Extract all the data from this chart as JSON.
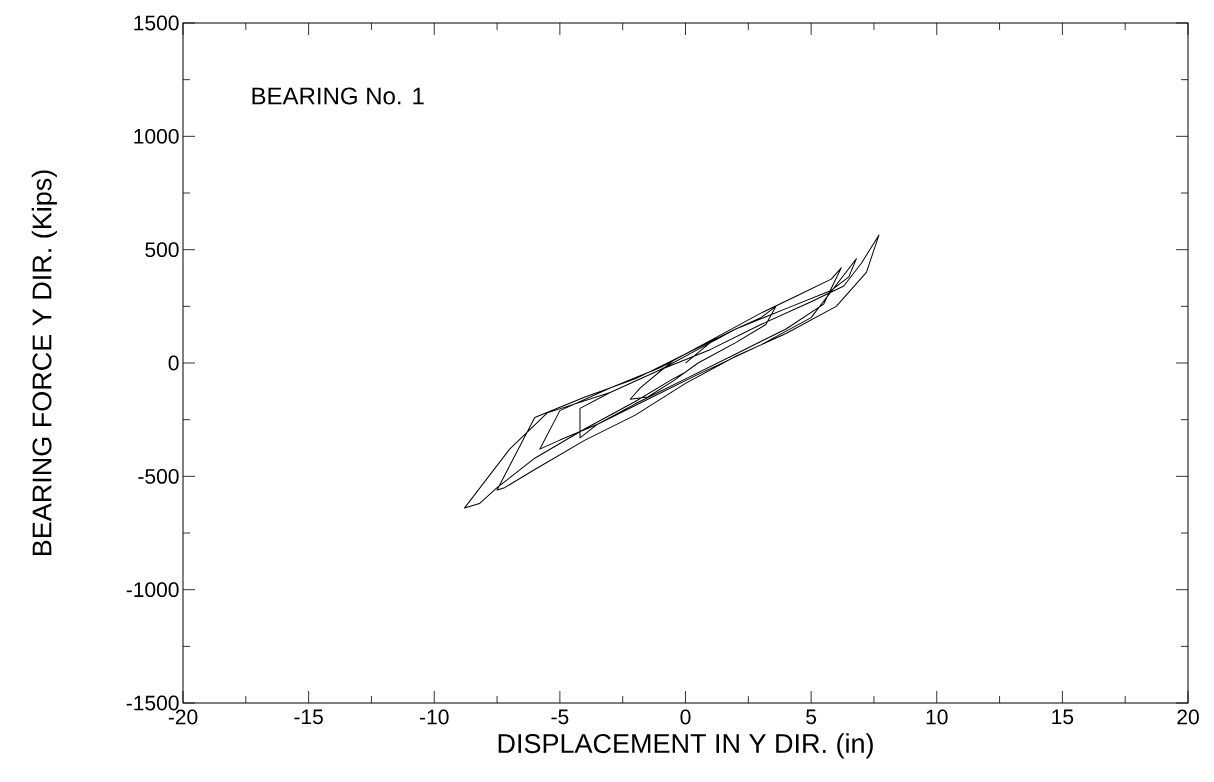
{
  "chart_data": {
    "type": "line",
    "xlabel": "DISPLACEMENT  IN  Y DIR. (in)",
    "ylabel": "BEARING FORCE Y DIR. (Kips)",
    "annotations": [
      "BEARING No. 1"
    ],
    "color": "#000000",
    "marker": "none",
    "line_style": "solid",
    "grid": false,
    "xlim": [
      -20,
      20
    ],
    "ylim": [
      -1500,
      1500
    ],
    "xticks": [
      -20,
      -15,
      -10,
      -5,
      0,
      5,
      10,
      15,
      20
    ],
    "yticks": [
      -1500,
      -1000,
      -500,
      0,
      500,
      1000,
      1500
    ],
    "x": [
      0,
      1.2,
      0.5,
      -0.5,
      -1.8,
      -2.2,
      -1.5,
      -0.5,
      0.5,
      2,
      3.2,
      3.6,
      3,
      2,
      0.5,
      -1,
      -3,
      -4.2,
      -4.2,
      -3.5,
      -2,
      0,
      2,
      4,
      5.5,
      6.2,
      5.8,
      4.5,
      3,
      1,
      -1,
      -3,
      -5,
      -5.8,
      -5,
      -3.5,
      -1.5,
      0.5,
      3,
      5,
      6.8,
      6.5,
      5.8,
      4,
      2,
      0,
      -2,
      -4,
      -6,
      -7.5,
      -7.2,
      -6,
      -4,
      -2,
      0,
      2,
      4,
      6,
      7.2,
      7.7,
      7,
      6.3,
      5,
      3,
      1,
      -1,
      -3,
      -5.5,
      -7,
      -8.8,
      -8.2,
      -7.5,
      -6,
      -4,
      -2,
      -0.5,
      0
    ],
    "values": [
      0,
      110,
      70,
      10,
      -110,
      -160,
      -150,
      -80,
      0,
      90,
      170,
      250,
      200,
      150,
      60,
      -30,
      -130,
      -200,
      -330,
      -270,
      -180,
      -70,
      40,
      150,
      260,
      420,
      370,
      300,
      220,
      100,
      -20,
      -110,
      -210,
      -380,
      -340,
      -270,
      -160,
      -50,
      80,
      200,
      460,
      380,
      320,
      240,
      150,
      40,
      -70,
      -150,
      -240,
      -560,
      -550,
      -470,
      -340,
      -230,
      -90,
      30,
      130,
      250,
      400,
      565,
      440,
      340,
      270,
      170,
      60,
      -30,
      -130,
      -220,
      -380,
      -640,
      -620,
      -550,
      -420,
      -290,
      -170,
      -70,
      -40
    ]
  }
}
